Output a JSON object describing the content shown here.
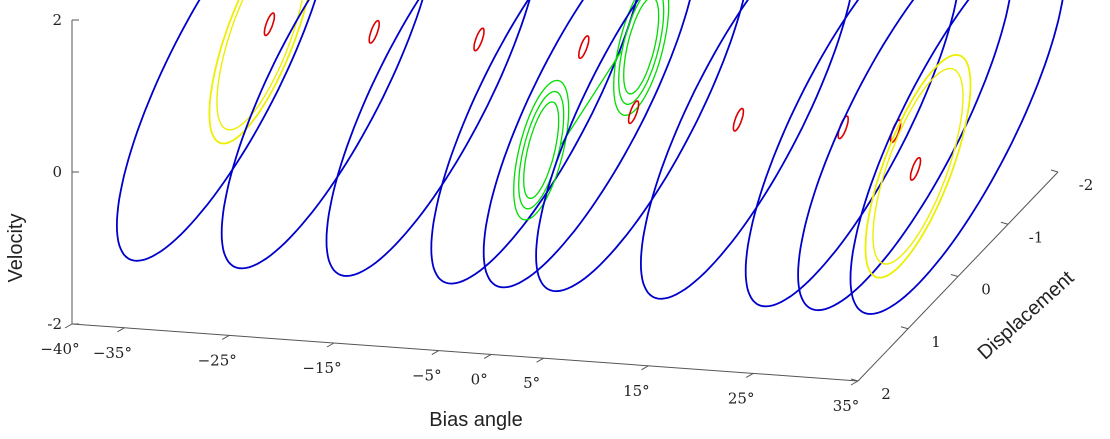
{
  "chart_data": {
    "type": "line",
    "projection": "3d",
    "title": "",
    "xlabel": "Bias angle",
    "ylabel": "Displacement",
    "zlabel": "Velocity",
    "x_ticks": [
      {
        "value": -40,
        "label": "−40°"
      },
      {
        "value": -35,
        "label": "−35°"
      },
      {
        "value": -25,
        "label": "−25°"
      },
      {
        "value": -15,
        "label": "−15°"
      },
      {
        "value": -5,
        "label": "−5°"
      },
      {
        "value": 0,
        "label": "0°"
      },
      {
        "value": 5,
        "label": "5°"
      },
      {
        "value": 15,
        "label": "15°"
      },
      {
        "value": 25,
        "label": "25°"
      },
      {
        "value": 35,
        "label": "35°"
      }
    ],
    "y_ticks": [
      "-2",
      "-1",
      "0",
      "1",
      "2"
    ],
    "z_ticks": [
      "2",
      "0",
      "-2"
    ],
    "xlim": [
      -40,
      35
    ],
    "ylim": [
      -2,
      2
    ],
    "zlim": [
      -2,
      2
    ],
    "grid": false,
    "legend": "none",
    "colors": {
      "outer": "#0000cc",
      "inner": "#dd0000",
      "yellow": "#eeee00",
      "green": "#00dd00"
    },
    "slices": [
      {
        "bias": -35,
        "outer_orbit": true,
        "inner_orbit": "small",
        "extra_orbit": "yellow"
      },
      {
        "bias": -25,
        "outer_orbit": true,
        "inner_orbit": "small",
        "extra_orbit": "none"
      },
      {
        "bias": -15,
        "outer_orbit": true,
        "inner_orbit": "small",
        "extra_orbit": "none"
      },
      {
        "bias": -5,
        "outer_orbit": true,
        "inner_orbit": "small",
        "extra_orbit": "none"
      },
      {
        "bias": 0,
        "outer_orbit": true,
        "inner_orbit": "none",
        "extra_orbit": "green"
      },
      {
        "bias": 5,
        "outer_orbit": true,
        "inner_orbit": "small",
        "extra_orbit": "none"
      },
      {
        "bias": 15,
        "outer_orbit": true,
        "inner_orbit": "small",
        "extra_orbit": "none"
      },
      {
        "bias": 25,
        "outer_orbit": true,
        "inner_orbit": "small",
        "extra_orbit": "none"
      },
      {
        "bias": 30,
        "outer_orbit": true,
        "inner_orbit": "small",
        "extra_orbit": "none"
      },
      {
        "bias": 35,
        "outer_orbit": true,
        "inner_orbit": "small",
        "extra_orbit": "yellow"
      }
    ]
  }
}
